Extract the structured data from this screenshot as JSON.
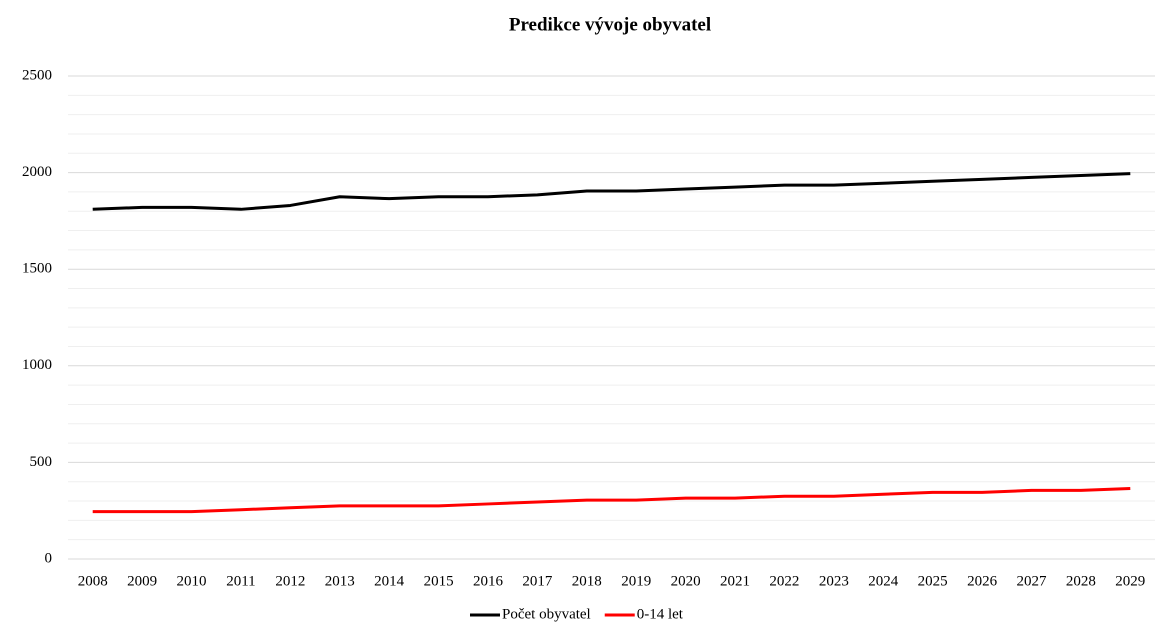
{
  "chart_data": {
    "type": "line",
    "title": "Predikce vývoje obyvatel",
    "categories": [
      "2008",
      "2009",
      "2010",
      "2011",
      "2012",
      "2013",
      "2014",
      "2015",
      "2016",
      "2017",
      "2018",
      "2019",
      "2020",
      "2021",
      "2022",
      "2023",
      "2024",
      "2025",
      "2026",
      "2027",
      "2028",
      "2029"
    ],
    "series": [
      {
        "name": "Počet obyvatel",
        "color": "#000000",
        "values": [
          1810,
          1820,
          1820,
          1810,
          1830,
          1875,
          1865,
          1875,
          1875,
          1885,
          1905,
          1905,
          1915,
          1925,
          1935,
          1935,
          1945,
          1955,
          1965,
          1975,
          1985,
          1995
        ]
      },
      {
        "name": "0-14 let",
        "color": "#ff0000",
        "values": [
          245,
          245,
          245,
          255,
          265,
          275,
          275,
          275,
          285,
          295,
          305,
          305,
          315,
          315,
          325,
          325,
          335,
          345,
          345,
          355,
          355,
          365
        ]
      }
    ],
    "ylim": [
      0,
      2500
    ],
    "yticks": [
      0,
      500,
      1000,
      1500,
      2000,
      2500
    ],
    "minor_yticks": [
      100,
      200,
      300,
      400,
      600,
      700,
      800,
      900,
      1100,
      1200,
      1300,
      1400,
      1600,
      1700,
      1800,
      1900,
      2100,
      2200,
      2300,
      2400
    ],
    "grid": true,
    "legend": "bottom"
  }
}
